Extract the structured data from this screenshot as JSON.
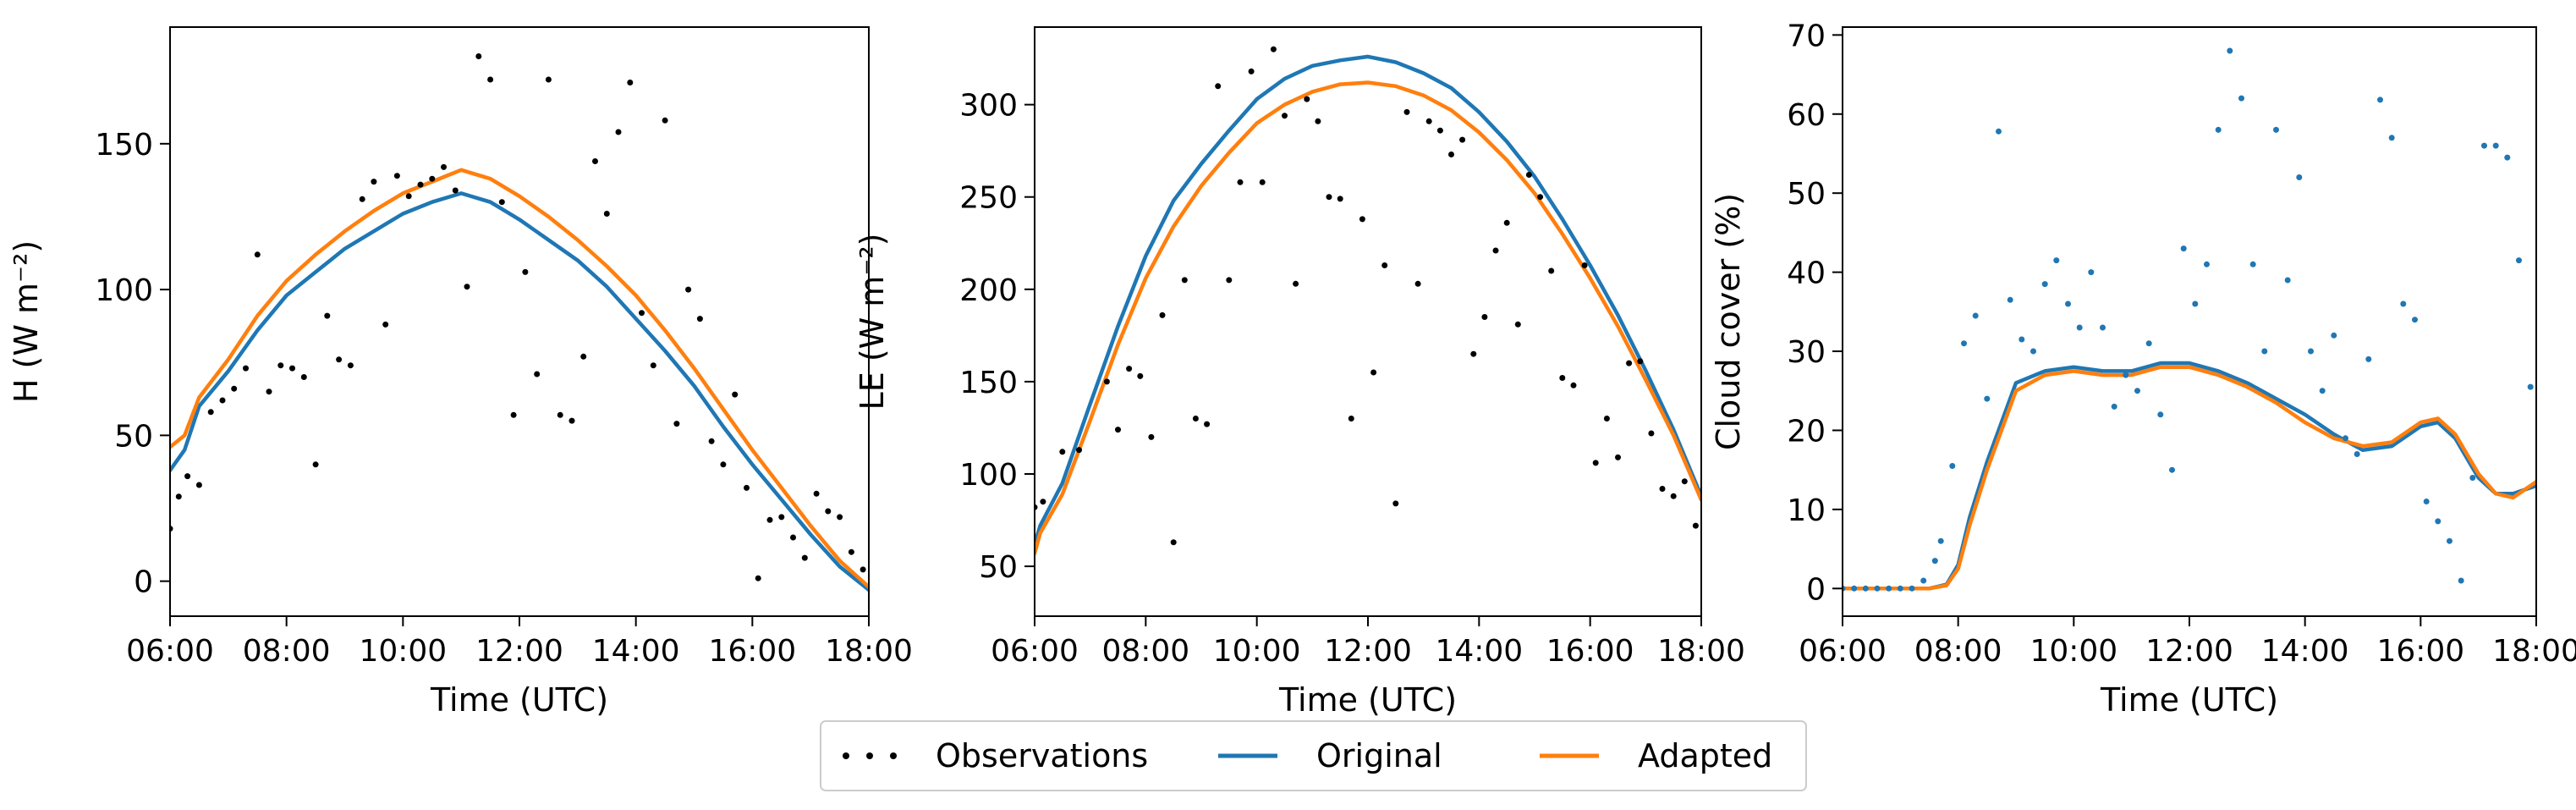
{
  "legend": {
    "items": [
      {
        "label": "Observations",
        "kind": "dots",
        "color": "#000000"
      },
      {
        "label": "Original",
        "kind": "line",
        "color": "#1f77b4"
      },
      {
        "label": "Adapted",
        "kind": "line",
        "color": "#ff7f0e"
      }
    ],
    "placement": "bottom-center"
  },
  "chart_data": [
    {
      "type": "line",
      "xlabel": "Time (UTC)",
      "ylabel": "H (W m⁻²)",
      "xlim": [
        6,
        18
      ],
      "ylim": [
        -12,
        190
      ],
      "xticks": [
        6,
        8,
        10,
        12,
        14,
        16,
        18
      ],
      "xtick_labels": [
        "06:00",
        "08:00",
        "10:00",
        "12:00",
        "14:00",
        "16:00",
        "18:00"
      ],
      "yticks": [
        0,
        50,
        100,
        150
      ],
      "grid": false,
      "series": [
        {
          "name": "Original",
          "color": "#1f77b4",
          "x": [
            6.0,
            6.25,
            6.5,
            7.0,
            7.5,
            8.0,
            8.5,
            9.0,
            9.5,
            10.0,
            10.5,
            11.0,
            11.5,
            12.0,
            12.5,
            13.0,
            13.5,
            14.0,
            14.5,
            15.0,
            15.5,
            16.0,
            16.5,
            17.0,
            17.5,
            18.0
          ],
          "y": [
            38,
            45,
            60,
            72,
            86,
            98,
            106,
            114,
            120,
            126,
            130,
            133,
            130,
            124,
            117,
            110,
            101,
            90,
            79,
            67,
            53,
            40,
            28,
            16,
            5,
            -3
          ]
        },
        {
          "name": "Adapted",
          "color": "#ff7f0e",
          "x": [
            6.0,
            6.25,
            6.5,
            7.0,
            7.5,
            8.0,
            8.5,
            9.0,
            9.5,
            10.0,
            10.5,
            11.0,
            11.5,
            12.0,
            12.5,
            13.0,
            13.5,
            14.0,
            14.5,
            15.0,
            15.5,
            16.0,
            16.5,
            17.0,
            17.5,
            18.0
          ],
          "y": [
            46,
            50,
            63,
            76,
            91,
            103,
            112,
            120,
            127,
            133,
            137,
            141,
            138,
            132,
            125,
            117,
            108,
            98,
            86,
            73,
            59,
            45,
            32,
            19,
            7,
            -2
          ]
        },
        {
          "name": "Observations",
          "color": "#000000",
          "markers_only": true,
          "x": [
            6.0,
            6.15,
            6.3,
            6.5,
            6.7,
            6.9,
            7.1,
            7.3,
            7.5,
            7.7,
            7.9,
            8.1,
            8.3,
            8.5,
            8.7,
            8.9,
            9.1,
            9.3,
            9.5,
            9.7,
            9.9,
            10.1,
            10.3,
            10.5,
            10.7,
            10.9,
            11.1,
            11.3,
            11.5,
            11.7,
            11.9,
            12.1,
            12.3,
            12.5,
            12.7,
            12.9,
            13.1,
            13.3,
            13.5,
            13.7,
            13.9,
            14.1,
            14.3,
            14.5,
            14.7,
            14.9,
            15.1,
            15.3,
            15.5,
            15.7,
            15.9,
            16.1,
            16.3,
            16.5,
            16.7,
            16.9,
            17.1,
            17.3,
            17.5,
            17.7,
            17.9
          ],
          "y": [
            18,
            29,
            36,
            33,
            58,
            62,
            66,
            73,
            112,
            65,
            74,
            73,
            70,
            40,
            91,
            76,
            74,
            131,
            137,
            88,
            139,
            132,
            136,
            138,
            142,
            134,
            101,
            180,
            172,
            130,
            57,
            106,
            71,
            172,
            57,
            55,
            77,
            144,
            126,
            154,
            171,
            92,
            74,
            158,
            54,
            100,
            90,
            48,
            40,
            64,
            32,
            1,
            21,
            22,
            15,
            8,
            30,
            24,
            22,
            10,
            4
          ]
        }
      ]
    },
    {
      "type": "line",
      "xlabel": "Time (UTC)",
      "ylabel": "LE (W m⁻²)",
      "xlim": [
        6,
        18
      ],
      "ylim": [
        23,
        342
      ],
      "xticks": [
        6,
        8,
        10,
        12,
        14,
        16,
        18
      ],
      "xtick_labels": [
        "06:00",
        "08:00",
        "10:00",
        "12:00",
        "14:00",
        "16:00",
        "18:00"
      ],
      "yticks": [
        50,
        100,
        150,
        200,
        250,
        300
      ],
      "grid": false,
      "series": [
        {
          "name": "Original",
          "color": "#1f77b4",
          "x": [
            6.0,
            6.1,
            6.5,
            7.0,
            7.5,
            8.0,
            8.5,
            9.0,
            9.5,
            10.0,
            10.5,
            11.0,
            11.5,
            12.0,
            12.5,
            13.0,
            13.5,
            14.0,
            14.5,
            15.0,
            15.5,
            16.0,
            16.5,
            17.0,
            17.5,
            18.0
          ],
          "y": [
            62,
            72,
            95,
            138,
            180,
            218,
            248,
            268,
            286,
            303,
            314,
            321,
            324,
            326,
            323,
            317,
            309,
            296,
            280,
            261,
            238,
            213,
            186,
            156,
            124,
            88
          ]
        },
        {
          "name": "Adapted",
          "color": "#ff7f0e",
          "x": [
            6.0,
            6.1,
            6.5,
            7.0,
            7.5,
            8.0,
            8.5,
            9.0,
            9.5,
            10.0,
            10.5,
            11.0,
            11.5,
            12.0,
            12.5,
            13.0,
            13.5,
            14.0,
            14.5,
            15.0,
            15.5,
            16.0,
            16.5,
            17.0,
            17.5,
            18.0
          ],
          "y": [
            57,
            68,
            89,
            129,
            170,
            206,
            234,
            256,
            274,
            290,
            300,
            307,
            311,
            312,
            310,
            305,
            297,
            285,
            270,
            252,
            230,
            206,
            180,
            151,
            121,
            86
          ]
        },
        {
          "name": "Observations",
          "color": "#000000",
          "markers_only": true,
          "x": [
            6.0,
            6.15,
            6.5,
            6.8,
            7.3,
            7.5,
            7.7,
            7.9,
            8.1,
            8.3,
            8.5,
            8.7,
            8.9,
            9.1,
            9.3,
            9.5,
            9.7,
            9.9,
            10.1,
            10.3,
            10.5,
            10.7,
            10.9,
            11.1,
            11.3,
            11.5,
            11.7,
            11.9,
            12.1,
            12.3,
            12.5,
            12.7,
            12.9,
            13.1,
            13.3,
            13.5,
            13.7,
            13.9,
            14.1,
            14.3,
            14.5,
            14.7,
            14.9,
            15.1,
            15.3,
            15.5,
            15.7,
            15.9,
            16.1,
            16.3,
            16.5,
            16.7,
            16.9,
            17.1,
            17.3,
            17.5,
            17.7,
            17.9
          ],
          "y": [
            82,
            85,
            112,
            113,
            150,
            124,
            157,
            153,
            120,
            186,
            63,
            205,
            130,
            127,
            310,
            205,
            258,
            318,
            258,
            330,
            294,
            203,
            303,
            291,
            250,
            249,
            130,
            238,
            155,
            213,
            84,
            296,
            203,
            291,
            286,
            273,
            281,
            165,
            185,
            221,
            236,
            181,
            262,
            250,
            210,
            152,
            148,
            213,
            106,
            130,
            109,
            160,
            161,
            122,
            92,
            88,
            96,
            72
          ]
        }
      ]
    },
    {
      "type": "line",
      "xlabel": "Time (UTC)",
      "ylabel": "Cloud cover (%)",
      "xlim": [
        6,
        18
      ],
      "ylim": [
        -3.5,
        71
      ],
      "xticks": [
        6,
        8,
        10,
        12,
        14,
        16,
        18
      ],
      "xtick_labels": [
        "06:00",
        "08:00",
        "10:00",
        "12:00",
        "14:00",
        "16:00",
        "18:00"
      ],
      "yticks": [
        0,
        10,
        20,
        30,
        40,
        50,
        60,
        70
      ],
      "grid": false,
      "series": [
        {
          "name": "Original",
          "color": "#1f77b4",
          "x": [
            6.0,
            7.5,
            7.8,
            8.0,
            8.2,
            8.5,
            8.8,
            9.0,
            9.5,
            10.0,
            10.5,
            11.0,
            11.5,
            12.0,
            12.5,
            13.0,
            13.5,
            14.0,
            14.5,
            15.0,
            15.5,
            16.0,
            16.3,
            16.6,
            17.0,
            17.3,
            17.6,
            18.0
          ],
          "y": [
            0,
            0,
            0.5,
            3,
            9,
            16,
            22,
            26,
            27.5,
            28,
            27.5,
            27.5,
            28.5,
            28.5,
            27.5,
            26,
            24,
            22,
            19.5,
            17.5,
            18,
            20.5,
            21,
            19,
            14,
            12,
            12,
            13
          ]
        },
        {
          "name": "Adapted",
          "color": "#ff7f0e",
          "x": [
            6.0,
            7.5,
            7.8,
            8.0,
            8.2,
            8.5,
            8.8,
            9.0,
            9.5,
            10.0,
            10.5,
            11.0,
            11.5,
            12.0,
            12.5,
            13.0,
            13.5,
            14.0,
            14.5,
            15.0,
            15.5,
            16.0,
            16.3,
            16.6,
            17.0,
            17.3,
            17.6,
            18.0
          ],
          "y": [
            0,
            0,
            0.4,
            2.5,
            8,
            15,
            21,
            25,
            27,
            27.5,
            27,
            27,
            28,
            28,
            27,
            25.5,
            23.5,
            21,
            19,
            18,
            18.5,
            21,
            21.5,
            19.5,
            14.5,
            12,
            11.5,
            13.5
          ]
        },
        {
          "name": "Observations",
          "color": "#1f77b4",
          "markers_only": true,
          "x": [
            6.0,
            6.2,
            6.4,
            6.6,
            6.8,
            7.0,
            7.2,
            7.4,
            7.6,
            7.7,
            7.9,
            8.1,
            8.3,
            8.5,
            8.7,
            8.9,
            9.1,
            9.3,
            9.5,
            9.7,
            9.9,
            10.1,
            10.3,
            10.5,
            10.7,
            10.9,
            11.1,
            11.3,
            11.5,
            11.7,
            11.9,
            12.1,
            12.3,
            12.5,
            12.7,
            12.9,
            13.1,
            13.3,
            13.5,
            13.7,
            13.9,
            14.1,
            14.3,
            14.5,
            14.7,
            14.9,
            15.1,
            15.3,
            15.5,
            15.7,
            15.9,
            16.1,
            16.3,
            16.5,
            16.7,
            16.9,
            17.1,
            17.3,
            17.5,
            17.7,
            17.9
          ],
          "y": [
            0,
            0,
            0,
            0,
            0,
            0,
            0,
            1,
            3.5,
            6,
            15.5,
            31,
            34.5,
            24,
            57.8,
            36.5,
            31.5,
            30,
            38.5,
            41.5,
            36,
            33,
            40,
            33,
            23,
            27,
            25,
            31,
            22,
            15,
            43,
            36,
            41,
            58,
            68,
            62,
            41,
            30,
            58,
            39,
            52,
            30,
            25,
            32,
            19,
            17,
            29,
            61.8,
            57,
            36,
            34,
            11,
            8.5,
            6,
            1,
            14,
            56,
            56,
            54.5,
            41.5,
            25.5
          ]
        }
      ]
    }
  ]
}
